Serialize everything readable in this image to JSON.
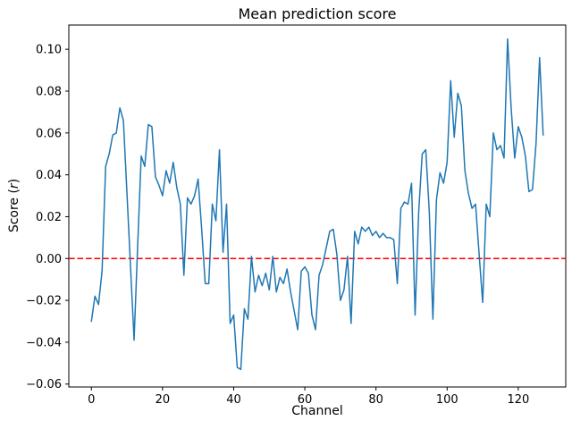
{
  "figure": {
    "background": "#ffffff",
    "ylabel_parts": {
      "prefix": "Score (",
      "italic": "r",
      "suffix": ")"
    }
  },
  "chart_data": {
    "type": "line",
    "title": "Mean prediction score",
    "xlabel": "Channel",
    "ylabel": "Score (r)",
    "grid": false,
    "legend": null,
    "xlim": [
      -6.35,
      133.35
    ],
    "ylim": [
      -0.0614,
      0.1116
    ],
    "x_ticks": {
      "values": [
        0,
        20,
        40,
        60,
        80,
        100,
        120
      ],
      "labels": [
        "0",
        "20",
        "40",
        "60",
        "80",
        "100",
        "120"
      ]
    },
    "y_ticks": {
      "values": [
        -0.06,
        -0.04,
        -0.02,
        0.0,
        0.02,
        0.04,
        0.06,
        0.08,
        0.1
      ],
      "labels": [
        "−0.06",
        "−0.04",
        "−0.02",
        "0.00",
        "0.02",
        "0.04",
        "0.06",
        "0.08",
        "0.10"
      ]
    },
    "reference_line": {
      "y": 0.0,
      "color": "#ff0000",
      "style": "dashed"
    },
    "x_start": 0,
    "x_step": 1,
    "series": [
      {
        "name": "mean prediction score",
        "color": "#1f77b4",
        "values": [
          -0.03,
          -0.018,
          -0.022,
          -0.006,
          0.044,
          0.05,
          0.059,
          0.06,
          0.072,
          0.066,
          0.031,
          -0.004,
          -0.039,
          0.006,
          0.049,
          0.044,
          0.064,
          0.063,
          0.039,
          0.035,
          0.03,
          0.042,
          0.036,
          0.046,
          0.034,
          0.026,
          -0.008,
          0.029,
          0.026,
          0.03,
          0.038,
          0.014,
          -0.012,
          -0.012,
          0.026,
          0.018,
          0.052,
          0.003,
          0.026,
          -0.031,
          -0.027,
          -0.052,
          -0.053,
          -0.024,
          -0.029,
          0.001,
          -0.016,
          -0.008,
          -0.013,
          -0.007,
          -0.015,
          0.001,
          -0.016,
          -0.009,
          -0.012,
          -0.005,
          -0.016,
          -0.025,
          -0.034,
          -0.006,
          -0.004,
          -0.007,
          -0.027,
          -0.034,
          -0.008,
          -0.003,
          0.005,
          0.013,
          0.014,
          0.002,
          -0.02,
          -0.015,
          0.001,
          -0.031,
          0.013,
          0.007,
          0.015,
          0.013,
          0.015,
          0.011,
          0.013,
          0.01,
          0.012,
          0.01,
          0.01,
          0.009,
          -0.012,
          0.024,
          0.027,
          0.026,
          0.036,
          -0.027,
          0.022,
          0.05,
          0.052,
          0.022,
          -0.029,
          0.028,
          0.041,
          0.036,
          0.046,
          0.085,
          0.058,
          0.079,
          0.073,
          0.042,
          0.031,
          0.024,
          0.026,
          0.002,
          -0.021,
          0.026,
          0.02,
          0.06,
          0.052,
          0.054,
          0.048,
          0.105,
          0.072,
          0.048,
          0.063,
          0.058,
          0.049,
          0.032,
          0.033,
          0.055,
          0.096,
          0.059
        ]
      }
    ]
  }
}
